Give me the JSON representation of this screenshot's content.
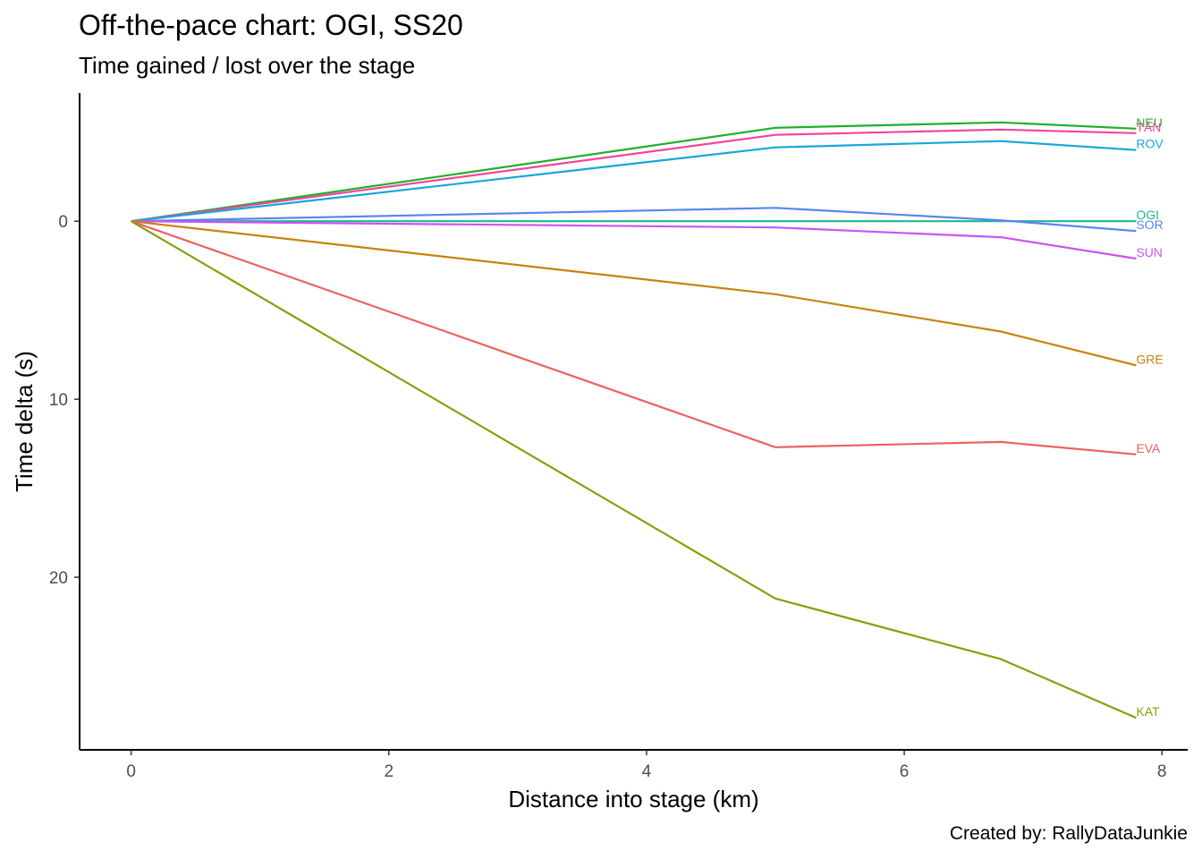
{
  "chart_data": {
    "type": "line",
    "title": "Off-the-pace chart: OGI, SS20",
    "subtitle": "Time gained / lost over the stage",
    "xlabel": "Distance into stage (km)",
    "ylabel": "Time delta (s)",
    "caption": "Created by: RallyDataJunkie",
    "xlim": [
      -0.4,
      8.2
    ],
    "ylim": [
      -7.2,
      29.7
    ],
    "y_reversed": true,
    "x_ticks": [
      0,
      2,
      4,
      6,
      8
    ],
    "y_ticks": [
      0,
      10,
      20
    ],
    "grid": false,
    "legend": "end-of-line labels",
    "x": [
      0,
      5.0,
      6.75,
      7.8
    ],
    "series": [
      {
        "name": "NEU",
        "color": "#1FB02B",
        "values": [
          0,
          -5.25,
          -5.55,
          -5.2
        ]
      },
      {
        "name": "TÄN",
        "color": "#F0469B",
        "values": [
          0,
          -4.85,
          -5.15,
          -4.95
        ]
      },
      {
        "name": "ROV",
        "color": "#1AA5DB",
        "values": [
          0,
          -4.15,
          -4.5,
          -4.0
        ]
      },
      {
        "name": "OGI",
        "color": "#1BB891",
        "values": [
          0,
          0,
          0,
          0
        ]
      },
      {
        "name": "SOR",
        "color": "#5A84F0",
        "values": [
          0,
          -0.75,
          -0.05,
          0.55
        ]
      },
      {
        "name": "SUN",
        "color": "#CC54F0",
        "values": [
          0,
          0.35,
          0.9,
          2.1
        ]
      },
      {
        "name": "GRE",
        "color": "#C7830F",
        "values": [
          0,
          4.1,
          6.2,
          8.1
        ]
      },
      {
        "name": "EVA",
        "color": "#ED6160",
        "values": [
          0,
          12.7,
          12.4,
          13.1
        ]
      },
      {
        "name": "KAT",
        "color": "#84A10C",
        "values": [
          0,
          21.2,
          24.6,
          27.9
        ]
      }
    ]
  }
}
